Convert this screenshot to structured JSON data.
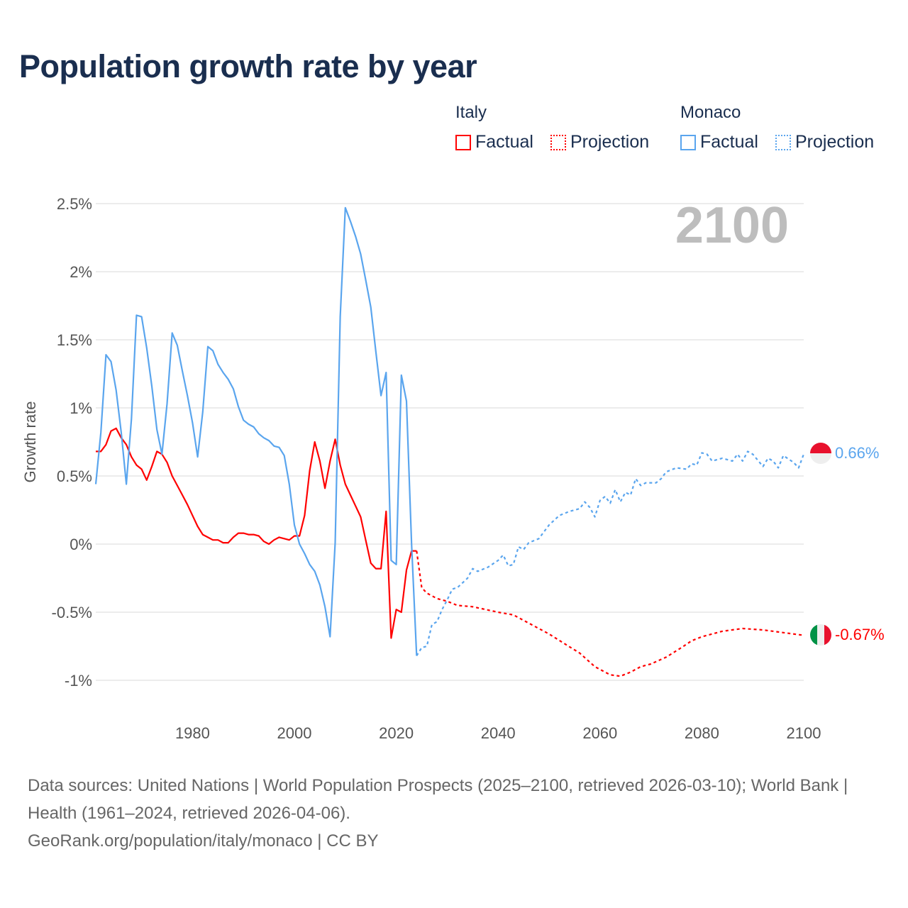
{
  "title": "Population growth rate by year",
  "legend": {
    "groups": [
      {
        "name": "Italy",
        "factual": "Factual",
        "projection": "Projection",
        "color": "#ff0000"
      },
      {
        "name": "Monaco",
        "factual": "Factual",
        "projection": "Projection",
        "color": "#5aa5ee"
      }
    ]
  },
  "year_label": "2100",
  "end_labels": {
    "monaco": "0.66%",
    "italy": "-0.67%"
  },
  "sources": {
    "line1": "Data sources: United Nations | World Population Prospects (2025–2100, retrieved 2026-03-10); World Bank | Health (1961–2024, retrieved 2026-04-06).",
    "line2": "GeoRank.org/population/italy/monaco | CC BY"
  },
  "chart_data": {
    "type": "line",
    "title": "Population growth rate by year",
    "xlabel": "",
    "ylabel": "Growth rate",
    "xlim": [
      1961,
      2100
    ],
    "ylim": [
      -1.1,
      2.6
    ],
    "x_ticks": [
      1980,
      2000,
      2020,
      2040,
      2060,
      2080,
      2100
    ],
    "y_ticks": [
      {
        "value": 2.5,
        "label": "2.5%"
      },
      {
        "value": 2,
        "label": "2%"
      },
      {
        "value": 1.5,
        "label": "1.5%"
      },
      {
        "value": 1,
        "label": "1%"
      },
      {
        "value": 0.5,
        "label": "0.5%"
      },
      {
        "value": 0,
        "label": "0%"
      },
      {
        "value": -0.5,
        "label": "-0.5%"
      },
      {
        "value": -1,
        "label": "-1%"
      }
    ],
    "grid": true,
    "legend_position": "top-right",
    "series": [
      {
        "name": "Italy Factual",
        "color": "#ff0000",
        "dashed": false,
        "x": [
          1961,
          1962,
          1963,
          1964,
          1965,
          1966,
          1967,
          1968,
          1969,
          1970,
          1971,
          1972,
          1973,
          1974,
          1975,
          1976,
          1977,
          1978,
          1979,
          1980,
          1981,
          1982,
          1983,
          1984,
          1985,
          1986,
          1987,
          1988,
          1989,
          1990,
          1991,
          1992,
          1993,
          1994,
          1995,
          1996,
          1997,
          1998,
          1999,
          2000,
          2001,
          2002,
          2003,
          2004,
          2005,
          2006,
          2007,
          2008,
          2009,
          2010,
          2011,
          2012,
          2013,
          2014,
          2015,
          2016,
          2017,
          2018,
          2019,
          2020,
          2021,
          2022,
          2023,
          2024
        ],
        "y": [
          0.68,
          0.68,
          0.73,
          0.83,
          0.85,
          0.78,
          0.73,
          0.64,
          0.58,
          0.55,
          0.47,
          0.57,
          0.68,
          0.66,
          0.6,
          0.5,
          0.43,
          0.36,
          0.29,
          0.21,
          0.13,
          0.07,
          0.05,
          0.03,
          0.03,
          0.01,
          0.01,
          0.05,
          0.08,
          0.08,
          0.07,
          0.07,
          0.06,
          0.02,
          0.0,
          0.03,
          0.05,
          0.04,
          0.03,
          0.06,
          0.06,
          0.21,
          0.54,
          0.75,
          0.61,
          0.41,
          0.61,
          0.77,
          0.58,
          0.44,
          0.36,
          0.28,
          0.2,
          0.03,
          -0.14,
          -0.18,
          -0.18,
          0.24,
          -0.69,
          -0.48,
          -0.5,
          -0.19,
          -0.05,
          -0.05
        ]
      },
      {
        "name": "Italy Projection",
        "color": "#ff0000",
        "dashed": true,
        "x": [
          2024,
          2025,
          2026,
          2028,
          2030,
          2032,
          2035,
          2040,
          2043,
          2046,
          2050,
          2053,
          2056,
          2059,
          2062,
          2064,
          2066,
          2068,
          2070,
          2073,
          2076,
          2078,
          2080,
          2084,
          2088,
          2092,
          2096,
          2100
        ],
        "y": [
          -0.05,
          -0.32,
          -0.36,
          -0.4,
          -0.42,
          -0.45,
          -0.46,
          -0.5,
          -0.52,
          -0.58,
          -0.66,
          -0.73,
          -0.8,
          -0.9,
          -0.96,
          -0.97,
          -0.94,
          -0.9,
          -0.88,
          -0.83,
          -0.76,
          -0.71,
          -0.68,
          -0.64,
          -0.62,
          -0.63,
          -0.65,
          -0.67
        ]
      },
      {
        "name": "Monaco Factual",
        "color": "#5aa5ee",
        "dashed": false,
        "x": [
          1961,
          1962,
          1963,
          1964,
          1965,
          1966,
          1967,
          1968,
          1969,
          1970,
          1971,
          1972,
          1973,
          1974,
          1975,
          1976,
          1977,
          1978,
          1979,
          1980,
          1981,
          1982,
          1983,
          1984,
          1985,
          1986,
          1987,
          1988,
          1989,
          1990,
          1991,
          1992,
          1993,
          1994,
          1995,
          1996,
          1997,
          1998,
          1999,
          2000,
          2001,
          2002,
          2003,
          2004,
          2005,
          2006,
          2007,
          2008,
          2009,
          2010,
          2011,
          2012,
          2013,
          2014,
          2015,
          2016,
          2017,
          2018,
          2019,
          2020,
          2021,
          2022,
          2023,
          2024
        ],
        "y": [
          0.44,
          0.82,
          1.39,
          1.34,
          1.13,
          0.82,
          0.44,
          0.92,
          1.68,
          1.67,
          1.44,
          1.16,
          0.84,
          0.66,
          1.03,
          1.55,
          1.46,
          1.27,
          1.09,
          0.89,
          0.64,
          0.97,
          1.45,
          1.42,
          1.32,
          1.26,
          1.21,
          1.14,
          1.01,
          0.91,
          0.88,
          0.86,
          0.81,
          0.78,
          0.76,
          0.72,
          0.71,
          0.65,
          0.44,
          0.14,
          0.0,
          -0.07,
          -0.15,
          -0.2,
          -0.3,
          -0.46,
          -0.68,
          0.01,
          1.67,
          2.47,
          2.37,
          2.26,
          2.13,
          1.94,
          1.74,
          1.41,
          1.09,
          1.26,
          -0.12,
          -0.15,
          1.24,
          1.05,
          0.0,
          -0.82
        ]
      },
      {
        "name": "Monaco Projection",
        "color": "#5aa5ee",
        "dashed": true,
        "x": [
          2024,
          2025,
          2026,
          2027,
          2028,
          2029,
          2030,
          2031,
          2032,
          2034,
          2035,
          2036,
          2038,
          2040,
          2041,
          2042,
          2043,
          2044,
          2045,
          2046,
          2048,
          2049,
          2050,
          2052,
          2054,
          2056,
          2057,
          2058,
          2059,
          2060,
          2061,
          2062,
          2063,
          2064,
          2065,
          2066,
          2067,
          2068,
          2069,
          2071,
          2072,
          2073,
          2075,
          2077,
          2078,
          2079,
          2080,
          2081,
          2082,
          2084,
          2086,
          2087,
          2088,
          2089,
          2090,
          2092,
          2093,
          2094,
          2095,
          2096,
          2098,
          2099,
          2100
        ],
        "y": [
          -0.82,
          -0.76,
          -0.75,
          -0.59,
          -0.57,
          -0.48,
          -0.41,
          -0.33,
          -0.32,
          -0.25,
          -0.18,
          -0.2,
          -0.17,
          -0.12,
          -0.08,
          -0.16,
          -0.15,
          -0.02,
          -0.04,
          0.01,
          0.04,
          0.09,
          0.14,
          0.21,
          0.24,
          0.26,
          0.31,
          0.27,
          0.2,
          0.32,
          0.35,
          0.3,
          0.4,
          0.31,
          0.38,
          0.36,
          0.48,
          0.43,
          0.45,
          0.45,
          0.48,
          0.53,
          0.56,
          0.55,
          0.59,
          0.58,
          0.67,
          0.66,
          0.61,
          0.63,
          0.61,
          0.66,
          0.61,
          0.68,
          0.66,
          0.57,
          0.63,
          0.61,
          0.56,
          0.65,
          0.6,
          0.56,
          0.66
        ]
      }
    ]
  }
}
